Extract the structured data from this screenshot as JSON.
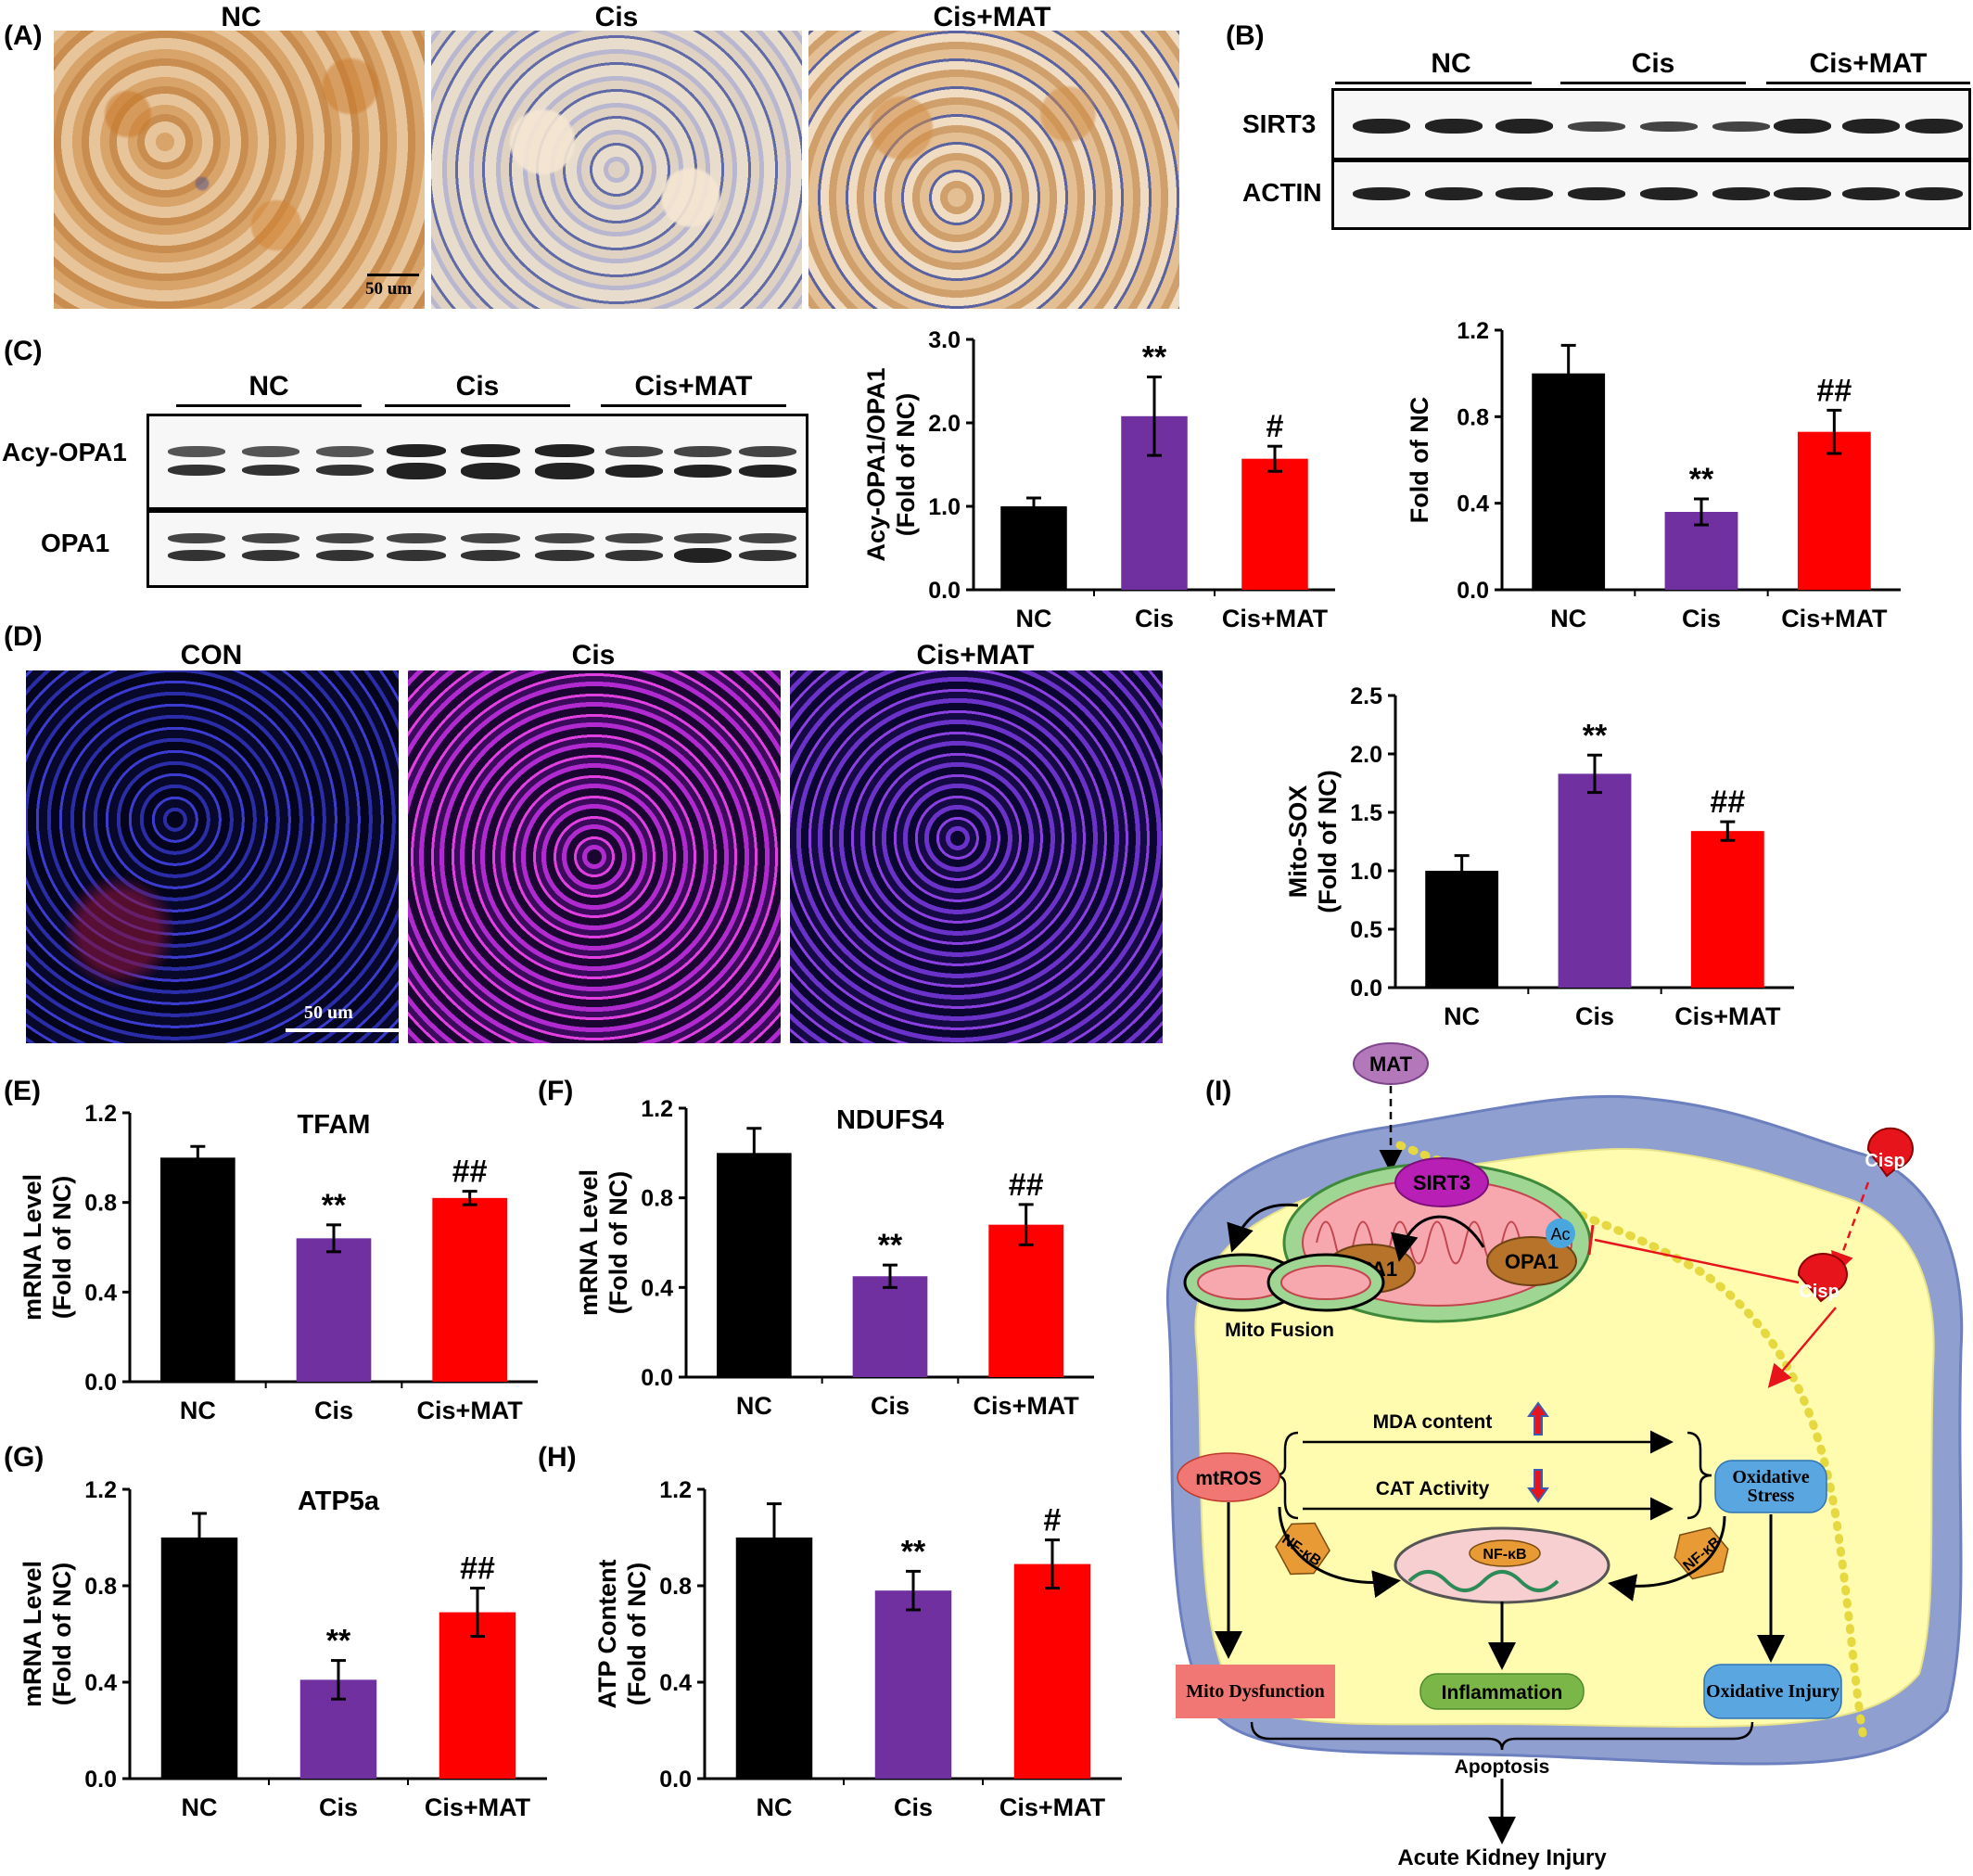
{
  "panels": {
    "A": {
      "letter": "(A)",
      "groups": [
        "NC",
        "Cis",
        "Cis+MAT"
      ],
      "scale_bar": "50 um"
    },
    "B": {
      "letter": "(B)",
      "groups": [
        "NC",
        "Cis",
        "Cis+MAT"
      ],
      "rows": [
        "SIRT3",
        "ACTIN"
      ]
    },
    "C": {
      "letter": "(C)",
      "groups": [
        "NC",
        "Cis",
        "Cis+MAT"
      ],
      "rows": [
        "Acy-OPA1",
        "OPA1"
      ]
    },
    "D": {
      "letter": "(D)",
      "groups": [
        "CON",
        "Cis",
        "Cis+MAT"
      ],
      "scale_bar": "50 um"
    },
    "E": {
      "letter": "(E)"
    },
    "F": {
      "letter": "(F)"
    },
    "G": {
      "letter": "(G)"
    },
    "H": {
      "letter": "(H)"
    },
    "I": {
      "letter": "(I)",
      "labels": {
        "mat": "MAT",
        "sirt3": "SIRT3",
        "ac": "Ac",
        "opa1_left": "OPA1",
        "opa1_right": "OPA1",
        "cisp_out": "Cisp",
        "cisp_in": "Cisp",
        "mito_fusion": "Mito Fusion",
        "mda": "MDA content",
        "cat": "CAT Activity",
        "mtros": "mtROS",
        "oxidative_stress": "Oxidative Stress",
        "nfkb_left": "NF-κB",
        "nfkb_center": "NF-κB",
        "nfkb_right": "NF-κB",
        "mito_dysfunction": "Mito Dysfunction",
        "inflammation": "Inflammation",
        "oxidative_injury": "Oxidative Injury",
        "apoptosis": "Apoptosis",
        "aki": "Acute Kidney Injury"
      }
    }
  },
  "colors": {
    "nc": "#000000",
    "cis": "#7030a0",
    "cis_mat": "#ff0000"
  },
  "chart_data": [
    {
      "id": "C1",
      "type": "bar",
      "categories": [
        "NC",
        "Cis",
        "Cis+MAT"
      ],
      "values": [
        1.0,
        2.08,
        1.57
      ],
      "errors": [
        0.1,
        0.47,
        0.15
      ],
      "annotations": [
        "",
        "**",
        "#"
      ],
      "ylabel": [
        "Acy-OPA1/OPA1",
        "(Fold of NC)"
      ],
      "title": "",
      "ylim": [
        0,
        3.0
      ],
      "yticks": [
        "0.0",
        "1.0",
        "2.0",
        "3.0"
      ]
    },
    {
      "id": "C2",
      "type": "bar",
      "categories": [
        "NC",
        "Cis",
        "Cis+MAT"
      ],
      "values": [
        1.0,
        0.36,
        0.73
      ],
      "errors": [
        0.13,
        0.06,
        0.1
      ],
      "annotations": [
        "",
        "**",
        "##"
      ],
      "ylabel": [
        "Fold of NC"
      ],
      "title": "",
      "ylim": [
        0,
        1.2
      ],
      "yticks": [
        "0.0",
        "0.4",
        "0.8",
        "1.2"
      ]
    },
    {
      "id": "D",
      "type": "bar",
      "categories": [
        "NC",
        "Cis",
        "Cis+MAT"
      ],
      "values": [
        1.0,
        1.83,
        1.34
      ],
      "errors": [
        0.13,
        0.16,
        0.08
      ],
      "annotations": [
        "",
        "**",
        "##"
      ],
      "ylabel": [
        "Mito-SOX",
        "(Fold of NC)"
      ],
      "title": "",
      "ylim": [
        0,
        2.5
      ],
      "yticks": [
        "0.0",
        "0.5",
        "1.0",
        "1.5",
        "2.0",
        "2.5"
      ]
    },
    {
      "id": "E",
      "type": "bar",
      "categories": [
        "NC",
        "Cis",
        "Cis+MAT"
      ],
      "values": [
        1.0,
        0.64,
        0.82
      ],
      "errors": [
        0.05,
        0.06,
        0.03
      ],
      "annotations": [
        "",
        "**",
        "##"
      ],
      "ylabel": [
        "mRNA Level",
        "(Fold of NC)"
      ],
      "title": "TFAM",
      "ylim": [
        0,
        1.2
      ],
      "yticks": [
        "0.0",
        "0.4",
        "0.8",
        "1.2"
      ]
    },
    {
      "id": "F",
      "type": "bar",
      "categories": [
        "NC",
        "Cis",
        "Cis+MAT"
      ],
      "values": [
        1.0,
        0.45,
        0.68
      ],
      "errors": [
        0.11,
        0.05,
        0.09
      ],
      "annotations": [
        "",
        "**",
        "##"
      ],
      "ylabel": [
        "mRNA Level",
        "(Fold of NC)"
      ],
      "title": "NDUFS4",
      "ylim": [
        0,
        1.2
      ],
      "yticks": [
        "0.0",
        "0.4",
        "0.8",
        "1.2"
      ]
    },
    {
      "id": "G",
      "type": "bar",
      "categories": [
        "NC",
        "Cis",
        "Cis+MAT"
      ],
      "values": [
        1.0,
        0.41,
        0.69
      ],
      "errors": [
        0.1,
        0.08,
        0.1
      ],
      "annotations": [
        "",
        "**",
        "##"
      ],
      "ylabel": [
        "mRNA Level",
        "(Fold of NC)"
      ],
      "title": "ATP5a",
      "ylim": [
        0,
        1.2
      ],
      "yticks": [
        "0.0",
        "0.4",
        "0.8",
        "1.2"
      ]
    },
    {
      "id": "H",
      "type": "bar",
      "categories": [
        "NC",
        "Cis",
        "Cis+MAT"
      ],
      "values": [
        1.0,
        0.78,
        0.89
      ],
      "errors": [
        0.14,
        0.08,
        0.1
      ],
      "annotations": [
        "",
        "**",
        "#"
      ],
      "ylabel": [
        "ATP Content",
        "(Fold of NC)"
      ],
      "title": "",
      "ylim": [
        0,
        1.2
      ],
      "yticks": [
        "0.0",
        "0.4",
        "0.8",
        "1.2"
      ]
    }
  ]
}
